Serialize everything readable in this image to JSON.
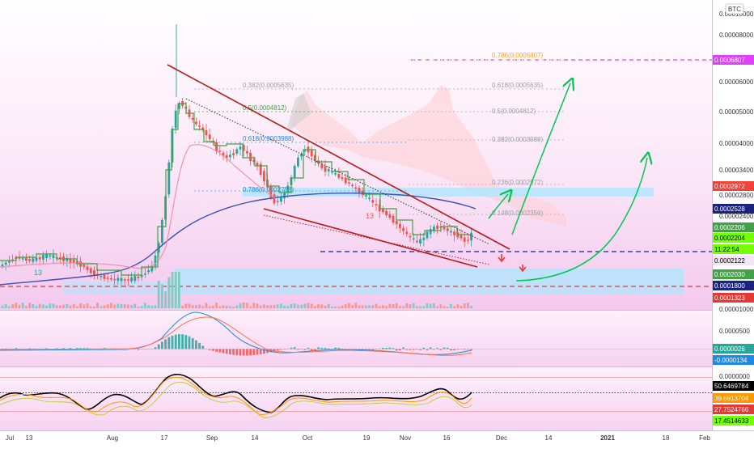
{
  "chart_data": {
    "type": "candlestick",
    "instrument": {
      "currency": "BTC"
    },
    "x_axis": {
      "ticks": [
        "Jul",
        "13",
        "Aug",
        "17",
        "Sep",
        "14",
        "Oct",
        "19",
        "Nov",
        "16",
        "Dec",
        "14",
        "2021",
        "18",
        "Feb"
      ]
    },
    "price_axis": {
      "ticks": [
        "0.00010000",
        "0.00008000",
        "0.00006000",
        "0.00005000",
        "0.00004000",
        "0.00003400",
        "0.00002800",
        "0.00002400",
        "0.00001000"
      ],
      "top_label": "0.00010000"
    },
    "price_badges": [
      {
        "value": "0.0006807",
        "color": "#e040fb"
      },
      {
        "value": "0.0002972",
        "color": "#f44336"
      },
      {
        "value": "0.0002528",
        "color": "#1a237e"
      },
      {
        "value": "0.0002206",
        "color": "#43a047"
      },
      {
        "value": "0.0002204",
        "color": "#76ff03"
      },
      {
        "value": "11:22:54",
        "color": "#76ff03"
      },
      {
        "value": "0.0002122",
        "color": "#f3e5f5"
      },
      {
        "value": "0.0002030",
        "color": "#43a047"
      },
      {
        "value": "0.0001800",
        "color": "#1a237e"
      },
      {
        "value": "0.0001323",
        "color": "#e53935"
      }
    ],
    "fib_left": [
      {
        "label": "0.382(0.0005635)",
        "color": "#9e9e9e"
      },
      {
        "label": "0.5(0.0004812)",
        "color": "#43a047"
      },
      {
        "label": "0.618(0.0003988)",
        "color": "#1e88e5"
      },
      {
        "label": "0.786(0.0002758)",
        "color": "#1e88e5"
      }
    ],
    "fib_right": [
      {
        "label": "0.786(0.0006807)",
        "color": "#ffa726"
      },
      {
        "label": "0.618(0.0005635)",
        "color": "#9e9e9e"
      },
      {
        "label": "0.5(0.0004812)",
        "color": "#9e9e9e"
      },
      {
        "label": "0.382(0.0003988)",
        "color": "#9e9e9e"
      },
      {
        "label": "0.236(0.0002972)",
        "color": "#9e9e9e"
      },
      {
        "label": "0.148(0.0002356)",
        "color": "#9e9e9e"
      }
    ],
    "candle_markers": [
      "13",
      "13"
    ],
    "macd": {
      "axis_ticks": [
        "0.0000500",
        "0.0000000"
      ],
      "badges": [
        {
          "value": "0.0000026",
          "color": "#26a69a"
        },
        {
          "value": "-0.0000134",
          "color": "#1e88e5"
        }
      ]
    },
    "stoch": {
      "axis_ticks": [
        "0.0000000"
      ],
      "badges": [
        {
          "value": "50.6469784",
          "color": "#000000"
        },
        {
          "value": "39.6913704",
          "color": "#ff9800"
        },
        {
          "value": "27.7524766",
          "color": "#e53935"
        },
        {
          "value": "17.4514633",
          "color": "#76ff03"
        }
      ]
    },
    "colors": {
      "up": "#26a69a",
      "down": "#ef5350",
      "wedge": "#b71c1c",
      "arrows": "#00c853",
      "ma": "#3f51b5",
      "zone": "#b3e5fc",
      "cloud": "#ffcdd2"
    }
  }
}
